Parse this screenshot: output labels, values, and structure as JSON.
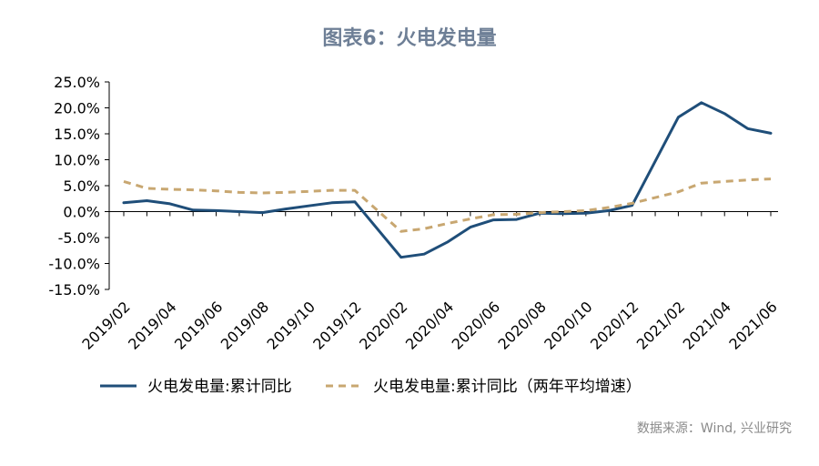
{
  "chart_data": {
    "type": "line",
    "title": "图表6：火电发电量",
    "xlabel": "",
    "ylabel": "",
    "ylim": [
      -15,
      25
    ],
    "yticks": [
      "25.0%",
      "20.0%",
      "15.0%",
      "10.0%",
      "5.0%",
      "0.0%",
      "-5.0%",
      "-10.0%",
      "-15.0%"
    ],
    "x": [
      "2019/02",
      "2019/03",
      "2019/04",
      "2019/05",
      "2019/06",
      "2019/07",
      "2019/08",
      "2019/09",
      "2019/10",
      "2019/11",
      "2019/12",
      "2020/01",
      "2020/02",
      "2020/03",
      "2020/04",
      "2020/05",
      "2020/06",
      "2020/07",
      "2020/08",
      "2020/09",
      "2020/10",
      "2020/11",
      "2020/12",
      "2021/01",
      "2021/02",
      "2021/03",
      "2021/04",
      "2021/05",
      "2021/06"
    ],
    "xtick_labels": [
      "2019/02",
      "2019/04",
      "2019/06",
      "2019/08",
      "2019/10",
      "2019/12",
      "2020/02",
      "2020/04",
      "2020/06",
      "2020/08",
      "2020/10",
      "2020/12",
      "2021/02",
      "2021/04",
      "2021/06"
    ],
    "series": [
      {
        "name": "火电发电量:累计同比",
        "color": "#1f4e79",
        "style": "solid",
        "values": [
          1.7,
          2.1,
          1.5,
          0.3,
          0.2,
          0.0,
          -0.2,
          0.5,
          1.1,
          1.7,
          1.9,
          null,
          -8.8,
          -8.2,
          -5.9,
          -3.0,
          -1.6,
          -1.5,
          -0.3,
          -0.4,
          -0.3,
          0.2,
          1.2,
          null,
          18.2,
          21.0,
          18.9,
          16.0,
          15.1
        ]
      },
      {
        "name": "火电发电量:累计同比（两年平均增速）",
        "color": "#c8a771",
        "style": "dashed",
        "values": [
          5.8,
          4.5,
          4.3,
          4.2,
          4.0,
          3.7,
          3.6,
          3.7,
          3.9,
          4.1,
          4.1,
          null,
          -3.8,
          -3.3,
          -2.3,
          -1.4,
          -0.6,
          -0.5,
          -0.2,
          0.0,
          0.2,
          0.8,
          1.6,
          null,
          3.8,
          5.5,
          5.8,
          6.1,
          6.3
        ]
      }
    ],
    "legend_position": "bottom",
    "grid": false
  },
  "source": "数据来源：Wind, 兴业研究"
}
